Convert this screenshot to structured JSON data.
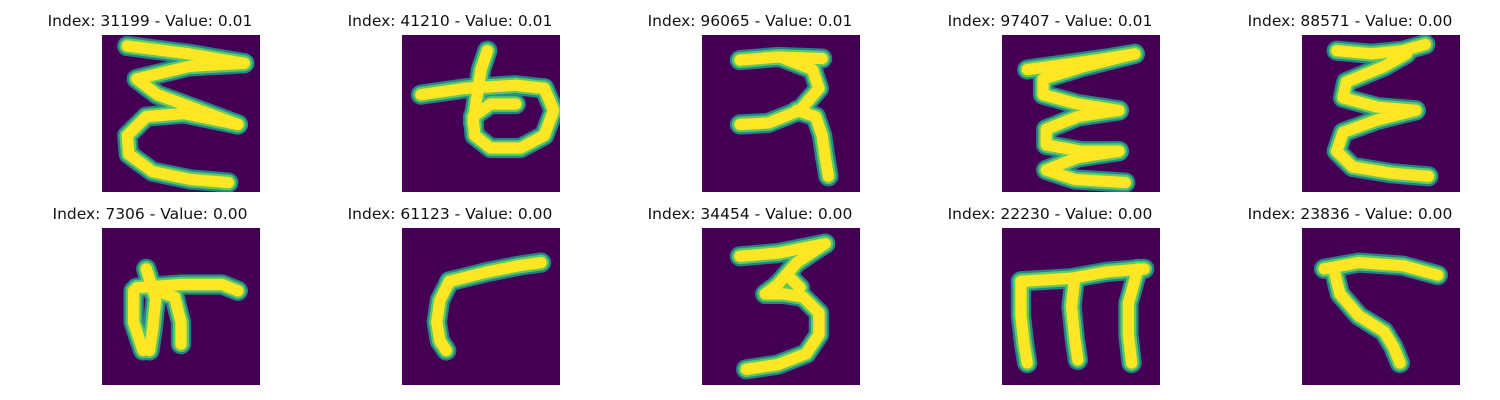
{
  "colors": {
    "background": "#440154",
    "stroke_core": "#fde725",
    "stroke_mid": "#5ec962",
    "stroke_edge": "#21918c"
  },
  "panels": [
    {
      "title": "Index: 31199 - Value: 0.01",
      "glyph": [
        [
          [
            0.16,
            0.07
          ],
          [
            0.55,
            0.12
          ],
          [
            0.9,
            0.18
          ]
        ],
        [
          [
            0.9,
            0.18
          ],
          [
            0.55,
            0.2
          ],
          [
            0.22,
            0.28
          ],
          [
            0.35,
            0.38
          ],
          [
            0.62,
            0.48
          ],
          [
            0.86,
            0.57
          ]
        ],
        [
          [
            0.86,
            0.57
          ],
          [
            0.52,
            0.5
          ],
          [
            0.28,
            0.52
          ],
          [
            0.16,
            0.64
          ],
          [
            0.17,
            0.76
          ],
          [
            0.32,
            0.87
          ],
          [
            0.56,
            0.92
          ],
          [
            0.8,
            0.94
          ]
        ]
      ]
    },
    {
      "title": "Index: 41210 - Value: 0.01",
      "glyph": [
        [
          [
            0.12,
            0.38
          ],
          [
            0.4,
            0.34
          ],
          [
            0.72,
            0.32
          ],
          [
            0.9,
            0.34
          ]
        ],
        [
          [
            0.9,
            0.34
          ],
          [
            0.96,
            0.48
          ],
          [
            0.9,
            0.64
          ],
          [
            0.75,
            0.72
          ],
          [
            0.56,
            0.72
          ],
          [
            0.46,
            0.64
          ],
          [
            0.45,
            0.52
          ],
          [
            0.56,
            0.44
          ],
          [
            0.72,
            0.44
          ]
        ],
        [
          [
            0.45,
            0.56
          ],
          [
            0.47,
            0.42
          ],
          [
            0.5,
            0.22
          ],
          [
            0.54,
            0.1
          ]
        ]
      ]
    },
    {
      "title": "Index: 96065 - Value: 0.01",
      "glyph": [
        [
          [
            0.24,
            0.16
          ],
          [
            0.48,
            0.14
          ],
          [
            0.76,
            0.15
          ]
        ],
        [
          [
            0.52,
            0.15
          ],
          [
            0.7,
            0.22
          ],
          [
            0.74,
            0.34
          ],
          [
            0.62,
            0.48
          ],
          [
            0.42,
            0.56
          ],
          [
            0.24,
            0.57
          ]
        ],
        [
          [
            0.6,
            0.48
          ],
          [
            0.72,
            0.52
          ],
          [
            0.76,
            0.64
          ],
          [
            0.78,
            0.78
          ],
          [
            0.8,
            0.9
          ]
        ]
      ]
    },
    {
      "title": "Index: 97407 - Value: 0.01",
      "glyph": [
        [
          [
            0.16,
            0.22
          ],
          [
            0.45,
            0.18
          ],
          [
            0.66,
            0.15
          ],
          [
            0.84,
            0.12
          ]
        ],
        [
          [
            0.84,
            0.12
          ],
          [
            0.52,
            0.2
          ],
          [
            0.26,
            0.28
          ],
          [
            0.26,
            0.38
          ],
          [
            0.48,
            0.44
          ],
          [
            0.74,
            0.48
          ]
        ],
        [
          [
            0.74,
            0.48
          ],
          [
            0.48,
            0.52
          ],
          [
            0.28,
            0.6
          ],
          [
            0.28,
            0.7
          ],
          [
            0.5,
            0.74
          ],
          [
            0.74,
            0.74
          ]
        ],
        [
          [
            0.74,
            0.74
          ],
          [
            0.48,
            0.78
          ],
          [
            0.28,
            0.86
          ],
          [
            0.46,
            0.92
          ],
          [
            0.78,
            0.94
          ]
        ]
      ]
    },
    {
      "title": "Index: 88571 - Value: 0.00",
      "glyph": [
        [
          [
            0.22,
            0.1
          ],
          [
            0.44,
            0.12
          ],
          [
            0.64,
            0.1
          ],
          [
            0.78,
            0.06
          ]
        ],
        [
          [
            0.66,
            0.12
          ],
          [
            0.52,
            0.2
          ],
          [
            0.28,
            0.3
          ],
          [
            0.26,
            0.4
          ],
          [
            0.48,
            0.46
          ],
          [
            0.72,
            0.48
          ]
        ],
        [
          [
            0.72,
            0.48
          ],
          [
            0.48,
            0.54
          ],
          [
            0.26,
            0.62
          ],
          [
            0.22,
            0.74
          ],
          [
            0.32,
            0.84
          ],
          [
            0.56,
            0.88
          ],
          [
            0.8,
            0.9
          ]
        ]
      ]
    },
    {
      "title": "Index: 7306 - Value: 0.00",
      "glyph": [
        [
          [
            0.22,
            0.38
          ],
          [
            0.5,
            0.36
          ],
          [
            0.76,
            0.36
          ],
          [
            0.86,
            0.4
          ]
        ],
        [
          [
            0.28,
            0.26
          ],
          [
            0.34,
            0.45
          ],
          [
            0.32,
            0.65
          ],
          [
            0.3,
            0.78
          ]
        ],
        [
          [
            0.2,
            0.4
          ],
          [
            0.2,
            0.6
          ],
          [
            0.26,
            0.78
          ]
        ],
        [
          [
            0.4,
            0.42
          ],
          [
            0.46,
            0.44
          ],
          [
            0.5,
            0.6
          ],
          [
            0.5,
            0.74
          ]
        ]
      ]
    },
    {
      "title": "Index: 61123 - Value: 0.00",
      "glyph": [
        [
          [
            0.3,
            0.34
          ],
          [
            0.54,
            0.28
          ],
          [
            0.74,
            0.24
          ],
          [
            0.88,
            0.22
          ]
        ],
        [
          [
            0.3,
            0.34
          ],
          [
            0.24,
            0.46
          ],
          [
            0.22,
            0.6
          ],
          [
            0.24,
            0.72
          ],
          [
            0.28,
            0.78
          ]
        ]
      ]
    },
    {
      "title": "Index: 34454 - Value: 0.00",
      "glyph": [
        [
          [
            0.24,
            0.18
          ],
          [
            0.48,
            0.16
          ],
          [
            0.78,
            0.1
          ]
        ],
        [
          [
            0.78,
            0.1
          ],
          [
            0.6,
            0.22
          ],
          [
            0.48,
            0.36
          ],
          [
            0.4,
            0.42
          ],
          [
            0.52,
            0.42
          ],
          [
            0.64,
            0.44
          ],
          [
            0.74,
            0.54
          ],
          [
            0.74,
            0.68
          ],
          [
            0.66,
            0.8
          ],
          [
            0.48,
            0.87
          ],
          [
            0.28,
            0.9
          ]
        ],
        [
          [
            0.56,
            0.32
          ],
          [
            0.62,
            0.38
          ]
        ]
      ]
    },
    {
      "title": "Index: 22230 - Value: 0.00",
      "glyph": [
        [
          [
            0.12,
            0.34
          ],
          [
            0.44,
            0.32
          ],
          [
            0.66,
            0.28
          ],
          [
            0.9,
            0.26
          ]
        ],
        [
          [
            0.12,
            0.34
          ],
          [
            0.12,
            0.56
          ],
          [
            0.14,
            0.74
          ],
          [
            0.16,
            0.86
          ]
        ],
        [
          [
            0.46,
            0.32
          ],
          [
            0.44,
            0.5
          ],
          [
            0.46,
            0.7
          ],
          [
            0.48,
            0.84
          ]
        ],
        [
          [
            0.86,
            0.26
          ],
          [
            0.8,
            0.48
          ],
          [
            0.8,
            0.68
          ],
          [
            0.82,
            0.86
          ]
        ]
      ]
    },
    {
      "title": "Index: 23836 - Value: 0.00",
      "glyph": [
        [
          [
            0.14,
            0.26
          ],
          [
            0.36,
            0.22
          ],
          [
            0.64,
            0.24
          ],
          [
            0.86,
            0.3
          ]
        ],
        [
          [
            0.2,
            0.26
          ],
          [
            0.24,
            0.42
          ],
          [
            0.36,
            0.56
          ],
          [
            0.52,
            0.66
          ],
          [
            0.58,
            0.76
          ],
          [
            0.62,
            0.86
          ]
        ]
      ]
    }
  ]
}
